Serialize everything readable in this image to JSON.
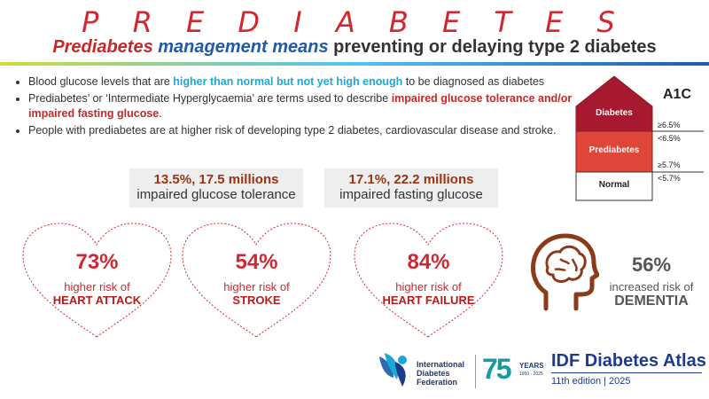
{
  "header": {
    "title": "P R E D I A B E T E S",
    "subtitle": {
      "part1": "Prediabetes",
      "part2": "management",
      "part3": "means",
      "part4": "preventing or delaying type 2 diabetes"
    }
  },
  "bullets": [
    {
      "pre": "Blood glucose levels that are ",
      "hl": "higher than normal but not yet high enough",
      "post": " to be diagnosed as diabetes"
    },
    {
      "pre": "Prediabetes’ or ‘Intermediate Hyperglycaemia’ are terms used to describe ",
      "hl": "impaired glucose tolerance and/or impaired fasting glucose",
      "post": "."
    },
    {
      "pre": "People with prediabetes are at higher risk of developing type 2 diabetes, cardiovascular disease and stroke.",
      "hl": "",
      "post": ""
    }
  ],
  "stats": [
    {
      "value": "13.5%, 17.5 millions",
      "label": "impaired glucose tolerance"
    },
    {
      "value": "17.1%, 22.2 millions",
      "label": "impaired fasting glucose"
    }
  ],
  "risks": [
    {
      "pct": "73%",
      "risk": "higher risk of",
      "cond": "HEART ATTACK"
    },
    {
      "pct": "54%",
      "risk": "higher risk of",
      "cond": "STROKE"
    },
    {
      "pct": "84%",
      "risk": "higher risk of",
      "cond": "HEART FAILURE"
    }
  ],
  "dementia": {
    "pct": "56%",
    "risk": "increased risk of",
    "cond": "DEMENTIA"
  },
  "a1c": {
    "title": "A1C",
    "levels": [
      "Diabetes",
      "Prediabetes",
      "Normal"
    ],
    "ticks": [
      "≥6.5%",
      "<6.5%",
      "≥5.7%",
      "<5.7%"
    ],
    "colors": {
      "diabetes": "#a6192e",
      "prediabetes": "#e0453a",
      "normal": "#ffffff"
    }
  },
  "footer": {
    "idf_lines": [
      "International",
      "Diabetes",
      "Federation"
    ],
    "years_big": "75",
    "years_word": "YEARS",
    "years_range": "1950 - 2025",
    "atlas_title": "IDF Diabetes Atlas",
    "atlas_edition": "11th edition | 2025"
  }
}
